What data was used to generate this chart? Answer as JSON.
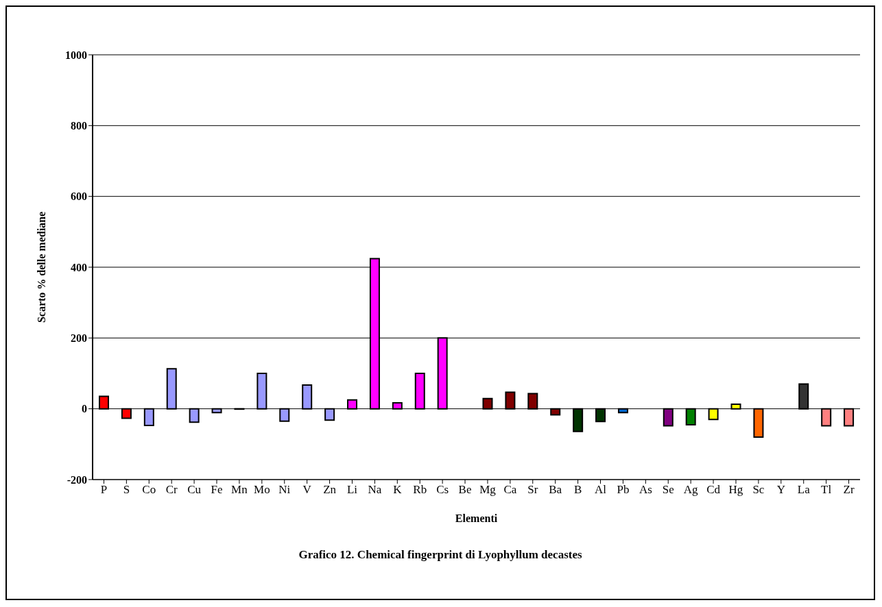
{
  "chart_data": {
    "type": "bar",
    "title": "Grafico 12. Chemical fingerprint di Lyophyllum decastes",
    "xlabel": "Elementi",
    "ylabel": "Scarto % delle mediane",
    "categories": [
      "P",
      "S",
      "Co",
      "Cr",
      "Cu",
      "Fe",
      "Mn",
      "Mo",
      "Ni",
      "V",
      "Zn",
      "Li",
      "Na",
      "K",
      "Rb",
      "Cs",
      "Be",
      "Mg",
      "Ca",
      "Sr",
      "Ba",
      "B",
      "Al",
      "Pb",
      "As",
      "Se",
      "Ag",
      "Cd",
      "Hg",
      "Sc",
      "Y",
      "La",
      "Tl",
      "Zr"
    ],
    "values": [
      35,
      -27,
      -47,
      113,
      -38,
      -11,
      -1,
      100,
      -35,
      67,
      -32,
      25,
      424,
      17,
      100,
      200,
      null,
      29,
      47,
      43,
      -17,
      -64,
      -36,
      -11,
      null,
      -48,
      -45,
      -30,
      13,
      -80,
      null,
      70,
      -48,
      -48
    ],
    "colors": [
      "#ff0000",
      "#ff0000",
      "#9999ff",
      "#9999ff",
      "#9999ff",
      "#9999ff",
      "#9999ff",
      "#9999ff",
      "#9999ff",
      "#9999ff",
      "#9999ff",
      "#ff00ff",
      "#ff00ff",
      "#ff00ff",
      "#ff00ff",
      "#ff00ff",
      "#ff00ff",
      "#800000",
      "#800000",
      "#800000",
      "#800000",
      "#003300",
      "#003300",
      "#0066cc",
      "#0066cc",
      "#800080",
      "#008000",
      "#ffff00",
      "#ffff00",
      "#ff6600",
      "#ff6600",
      "#333333",
      "#ff8080",
      "#ff8080"
    ],
    "ylim": [
      -200,
      1000
    ],
    "yticks": [
      -200,
      0,
      200,
      400,
      600,
      800,
      1000
    ],
    "grid": "y"
  }
}
